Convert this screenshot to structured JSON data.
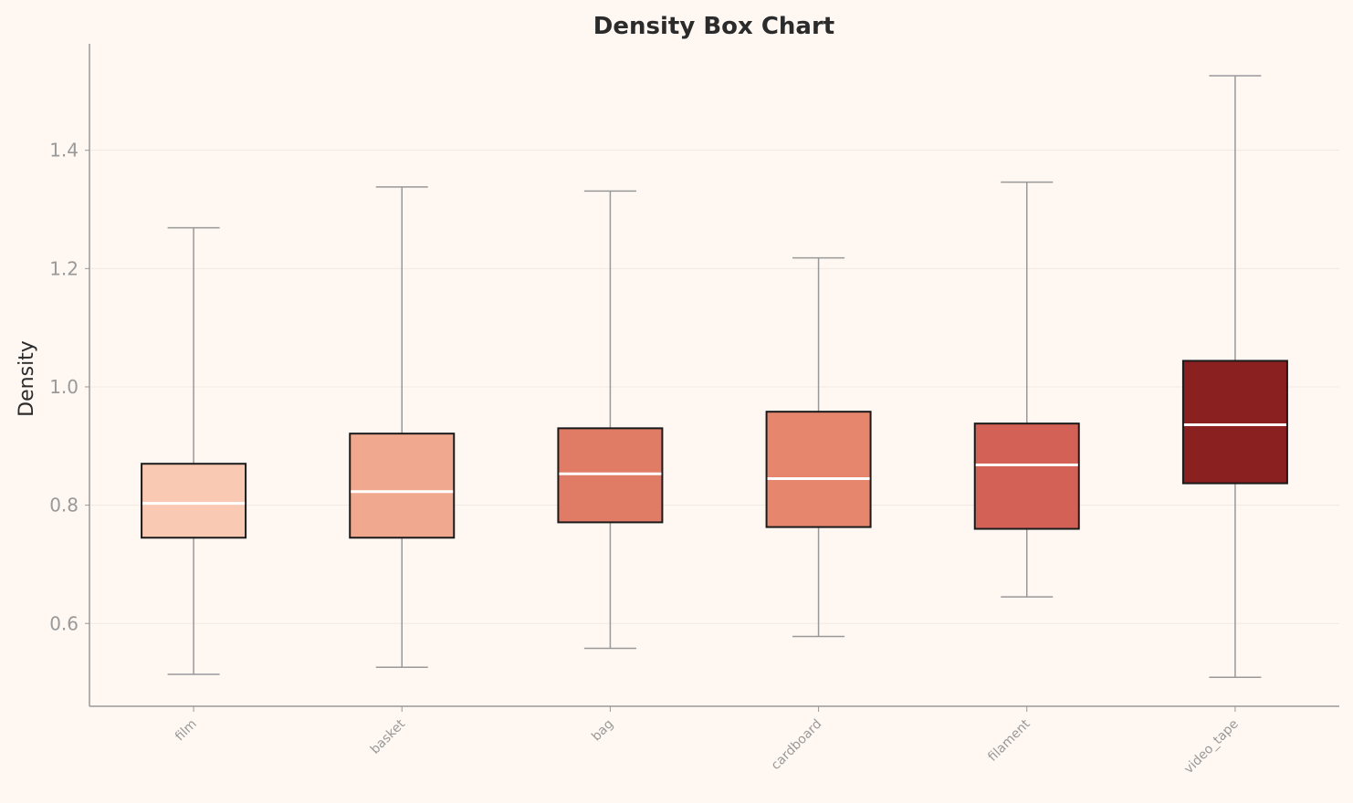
{
  "chart_data": {
    "type": "box",
    "title": "Density Box Chart",
    "xlabel": "",
    "ylabel": "Density",
    "ylim": [
      0.46,
      1.58
    ],
    "yticks": [
      0.6,
      0.8,
      1.0,
      1.2,
      1.4
    ],
    "ytick_labels": [
      "0.6",
      "0.8",
      "1.0",
      "1.2",
      "1.4"
    ],
    "grid": "horizontal",
    "categories": [
      "film",
      "basket",
      "bag",
      "cardboard",
      "filament",
      "video_tape"
    ],
    "boxes": [
      {
        "whisker_low": 0.514,
        "q1": 0.745,
        "median": 0.803,
        "q3": 0.87,
        "whisker_high": 1.269,
        "color": "#f9c9b4"
      },
      {
        "whisker_low": 0.526,
        "q1": 0.745,
        "median": 0.823,
        "q3": 0.921,
        "whisker_high": 1.338,
        "color": "#f0a98e"
      },
      {
        "whisker_low": 0.558,
        "q1": 0.771,
        "median": 0.853,
        "q3": 0.93,
        "whisker_high": 1.331,
        "color": "#e07b65"
      },
      {
        "whisker_low": 0.578,
        "q1": 0.763,
        "median": 0.845,
        "q3": 0.958,
        "whisker_high": 1.218,
        "color": "#e6866c"
      },
      {
        "whisker_low": 0.645,
        "q1": 0.76,
        "median": 0.868,
        "q3": 0.938,
        "whisker_high": 1.346,
        "color": "#d46155"
      },
      {
        "whisker_low": 0.509,
        "q1": 0.837,
        "median": 0.936,
        "q3": 1.044,
        "whisker_high": 1.526,
        "color": "#8b2020"
      }
    ],
    "colors": {
      "background": "#fef7f2",
      "axis": "#999999",
      "median": "#ffffff",
      "box_edge": "#1a1a1a"
    }
  }
}
